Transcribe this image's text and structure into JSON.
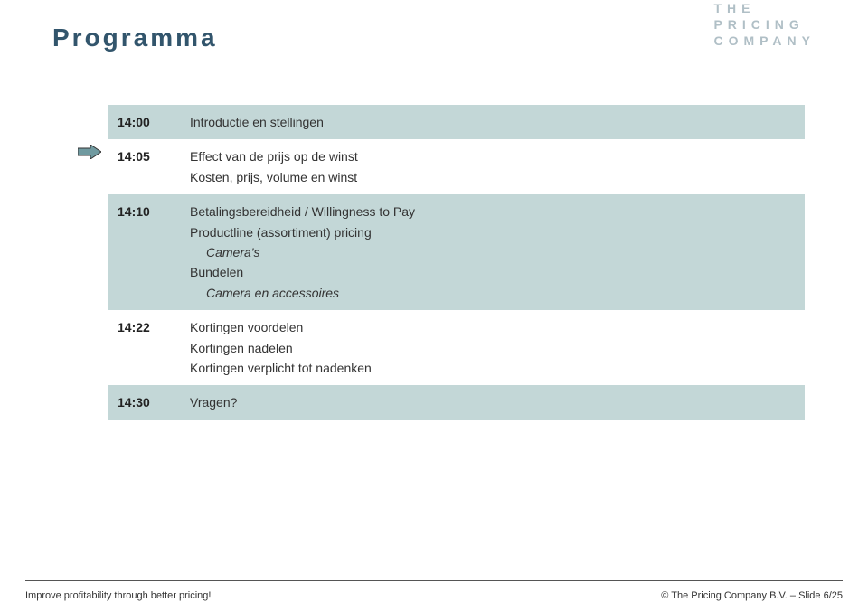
{
  "page_title": "Programma",
  "logo": {
    "line1": "THE",
    "line2": "PRICING",
    "line3": "COMPANY"
  },
  "colors": {
    "title_color": "#32556c",
    "logo_color": "#b0bfc6",
    "shaded_row_bg": "#c3d7d7",
    "arrow_fill": "#709aa0",
    "arrow_stroke": "#333333",
    "rule_color": "#555555",
    "text_color": "#333333",
    "background": "#ffffff"
  },
  "typography": {
    "title_fontsize": 28,
    "title_letter_spacing": 3,
    "body_fontsize": 14,
    "footer_fontsize": 11,
    "logo_fontsize": 14,
    "logo_letter_spacing": 6
  },
  "agenda": [
    {
      "time": "14:00",
      "shaded": true,
      "lines": [
        {
          "text": "Introductie en stellingen",
          "italic": false
        }
      ]
    },
    {
      "time": "14:05",
      "shaded": false,
      "lines": [
        {
          "text": "Effect van de prijs op de winst",
          "italic": false
        },
        {
          "text": "Kosten, prijs, volume en winst",
          "italic": false
        }
      ]
    },
    {
      "time": "14:10",
      "shaded": true,
      "lines": [
        {
          "text": "Betalingsbereidheid / Willingness to Pay",
          "italic": false
        },
        {
          "text": "Productline (assortiment) pricing",
          "italic": false
        },
        {
          "text": "Camera's",
          "italic": true,
          "indent": true
        },
        {
          "text": "Bundelen",
          "italic": false
        },
        {
          "text": "Camera en accessoires",
          "italic": true,
          "indent": true
        }
      ]
    },
    {
      "time": "14:22",
      "shaded": false,
      "lines": [
        {
          "text": "Kortingen voordelen",
          "italic": false
        },
        {
          "text": "Kortingen nadelen",
          "italic": false
        },
        {
          "text": "Kortingen verplicht tot nadenken",
          "italic": false
        }
      ]
    },
    {
      "time": "14:30",
      "shaded": true,
      "lines": [
        {
          "text": "Vragen?",
          "italic": false
        }
      ]
    }
  ],
  "arrow_row_index": 1,
  "footer": {
    "left": "Improve profitability through better pricing!",
    "right": "© The Pricing Company B.V. – Slide 6/25"
  }
}
